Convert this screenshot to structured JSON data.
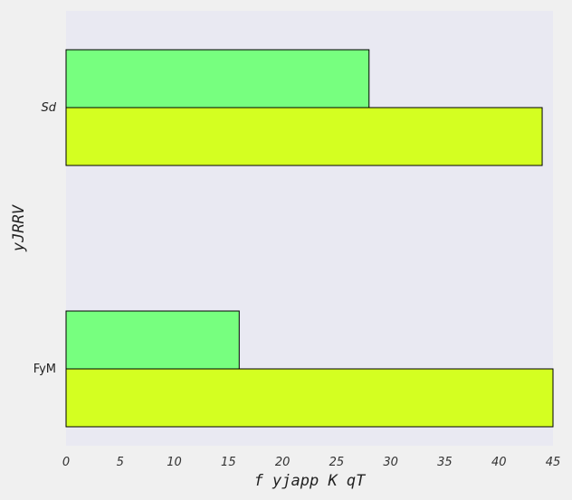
{
  "chart_data": {
    "type": "bar",
    "orientation": "horizontal",
    "title": "",
    "xlabel": "f yjapp K qT",
    "ylabel": "yJRRV",
    "categories": [
      "Sd",
      "FyM"
    ],
    "series": [
      {
        "values": [
          28,
          16
        ],
        "color": "#77ff7f"
      },
      {
        "values": [
          44,
          45
        ],
        "color": "#d4ff21"
      }
    ],
    "xlim": [
      0,
      45
    ],
    "xticks": [
      0,
      5,
      10,
      15,
      20,
      25,
      30,
      35,
      40,
      45
    ],
    "grid": false,
    "legend": "none",
    "colors": {
      "plot_background": "#e9e9f2",
      "figure_background": "#f0f0f0",
      "bar_edge": "#000000"
    }
  }
}
